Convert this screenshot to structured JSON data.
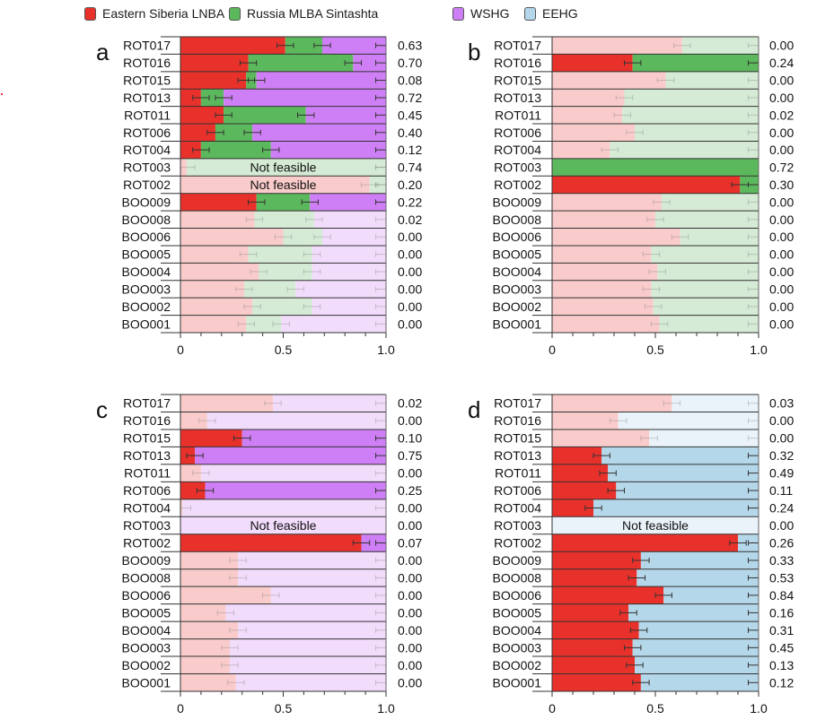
{
  "chart_data": {
    "type": "bar",
    "subtype": "stacked-horizontal-bar (admixture proportions, qpAdm-style)",
    "legend": [
      {
        "label": "Eastern Siberia LNBA",
        "color": "#e8312a"
      },
      {
        "label": "Russia MLBA Sintashta",
        "color": "#5cb85c"
      },
      {
        "label": "WSHG",
        "color": "#cf7ff5"
      },
      {
        "label": "EEHG",
        "color": "#b4d7ea"
      }
    ],
    "faded_colors": {
      "Eastern Siberia LNBA": "#f9cccb",
      "Russia MLBA Sintashta": "#d5ebd5",
      "WSHG": "#f2dcfb",
      "EEHG": "#eaf3fa"
    },
    "categories": [
      "ROT017",
      "ROT016",
      "ROT015",
      "ROT013",
      "ROT011",
      "ROT006",
      "ROT004",
      "ROT003",
      "ROT002",
      "BOO009",
      "BOO008",
      "BOO006",
      "BOO005",
      "BOO004",
      "BOO003",
      "BOO002",
      "BOO001"
    ],
    "xlim": [
      0,
      1.0
    ],
    "xticks": [
      "0",
      "0.5",
      "1.0"
    ],
    "minor_tick_step": 0.1,
    "not_feasible_label": "Not feasible",
    "panels": [
      {
        "letter": "a",
        "sources": [
          "Eastern Siberia LNBA",
          "Russia MLBA Sintashta",
          "WSHG"
        ],
        "rows": [
          {
            "id": "ROT017",
            "values": [
              0.51,
              0.18,
              0.31
            ],
            "p": "0.63",
            "feasible": true,
            "highlight": true
          },
          {
            "id": "ROT016",
            "values": [
              0.33,
              0.51,
              0.16
            ],
            "p": "0.70",
            "feasible": true,
            "highlight": true
          },
          {
            "id": "ROT015",
            "values": [
              0.32,
              0.05,
              0.63
            ],
            "p": "0.08",
            "feasible": true,
            "highlight": true
          },
          {
            "id": "ROT013",
            "values": [
              0.1,
              0.11,
              0.79
            ],
            "p": "0.72",
            "feasible": true,
            "highlight": true
          },
          {
            "id": "ROT011",
            "values": [
              0.21,
              0.4,
              0.39
            ],
            "p": "0.45",
            "feasible": true,
            "highlight": true
          },
          {
            "id": "ROT006",
            "values": [
              0.17,
              0.18,
              0.65
            ],
            "p": "0.40",
            "feasible": true,
            "highlight": true
          },
          {
            "id": "ROT004",
            "values": [
              0.1,
              0.34,
              0.56
            ],
            "p": "0.12",
            "feasible": true,
            "highlight": true
          },
          {
            "id": "ROT003",
            "values": [
              0.03,
              0.97,
              0.0
            ],
            "p": "0.74",
            "feasible": false,
            "highlight": false
          },
          {
            "id": "ROT002",
            "values": [
              0.92,
              0.08,
              0.0
            ],
            "p": "0.20",
            "feasible": false,
            "highlight": false
          },
          {
            "id": "BOO009",
            "values": [
              0.37,
              0.26,
              0.37
            ],
            "p": "0.22",
            "feasible": true,
            "highlight": true
          },
          {
            "id": "BOO008",
            "values": [
              0.36,
              0.29,
              0.35
            ],
            "p": "0.02",
            "feasible": true,
            "highlight": false
          },
          {
            "id": "BOO006",
            "values": [
              0.5,
              0.19,
              0.31
            ],
            "p": "0.00",
            "feasible": true,
            "highlight": false
          },
          {
            "id": "BOO005",
            "values": [
              0.33,
              0.31,
              0.36
            ],
            "p": "0.00",
            "feasible": true,
            "highlight": false
          },
          {
            "id": "BOO004",
            "values": [
              0.38,
              0.26,
              0.36
            ],
            "p": "0.00",
            "feasible": true,
            "highlight": false
          },
          {
            "id": "BOO003",
            "values": [
              0.31,
              0.25,
              0.44
            ],
            "p": "0.00",
            "feasible": true,
            "highlight": false
          },
          {
            "id": "BOO002",
            "values": [
              0.35,
              0.29,
              0.36
            ],
            "p": "0.00",
            "feasible": true,
            "highlight": false
          },
          {
            "id": "BOO001",
            "values": [
              0.32,
              0.17,
              0.51
            ],
            "p": "0.00",
            "feasible": true,
            "highlight": false
          }
        ]
      },
      {
        "letter": "b",
        "sources": [
          "Eastern Siberia LNBA",
          "Russia MLBA Sintashta"
        ],
        "rows": [
          {
            "id": "ROT017",
            "values": [
              0.63,
              0.37
            ],
            "p": "0.00",
            "feasible": true,
            "highlight": false
          },
          {
            "id": "ROT016",
            "values": [
              0.39,
              0.61
            ],
            "p": "0.24",
            "feasible": true,
            "highlight": true
          },
          {
            "id": "ROT015",
            "values": [
              0.55,
              0.45
            ],
            "p": "0.00",
            "feasible": true,
            "highlight": false
          },
          {
            "id": "ROT013",
            "values": [
              0.35,
              0.65
            ],
            "p": "0.00",
            "feasible": true,
            "highlight": false
          },
          {
            "id": "ROT011",
            "values": [
              0.34,
              0.66
            ],
            "p": "0.02",
            "feasible": true,
            "highlight": false
          },
          {
            "id": "ROT006",
            "values": [
              0.4,
              0.6
            ],
            "p": "0.00",
            "feasible": true,
            "highlight": false
          },
          {
            "id": "ROT004",
            "values": [
              0.28,
              0.72
            ],
            "p": "0.00",
            "feasible": true,
            "highlight": false
          },
          {
            "id": "ROT003",
            "values": [
              0.0,
              1.0
            ],
            "p": "0.72",
            "feasible": true,
            "highlight": true
          },
          {
            "id": "ROT002",
            "values": [
              0.91,
              0.09
            ],
            "p": "0.30",
            "feasible": true,
            "highlight": true
          },
          {
            "id": "BOO009",
            "values": [
              0.53,
              0.47
            ],
            "p": "0.00",
            "feasible": true,
            "highlight": false
          },
          {
            "id": "BOO008",
            "values": [
              0.5,
              0.5
            ],
            "p": "0.00",
            "feasible": true,
            "highlight": false
          },
          {
            "id": "BOO006",
            "values": [
              0.62,
              0.38
            ],
            "p": "0.00",
            "feasible": true,
            "highlight": false
          },
          {
            "id": "BOO005",
            "values": [
              0.48,
              0.52
            ],
            "p": "0.00",
            "feasible": true,
            "highlight": false
          },
          {
            "id": "BOO004",
            "values": [
              0.51,
              0.49
            ],
            "p": "0.00",
            "feasible": true,
            "highlight": false
          },
          {
            "id": "BOO003",
            "values": [
              0.48,
              0.52
            ],
            "p": "0.00",
            "feasible": true,
            "highlight": false
          },
          {
            "id": "BOO002",
            "values": [
              0.49,
              0.51
            ],
            "p": "0.00",
            "feasible": true,
            "highlight": false
          },
          {
            "id": "BOO001",
            "values": [
              0.52,
              0.48
            ],
            "p": "0.00",
            "feasible": true,
            "highlight": false
          }
        ]
      },
      {
        "letter": "c",
        "sources": [
          "Eastern Siberia LNBA",
          "WSHG"
        ],
        "rows": [
          {
            "id": "ROT017",
            "values": [
              0.45,
              0.55
            ],
            "p": "0.02",
            "feasible": true,
            "highlight": false
          },
          {
            "id": "ROT016",
            "values": [
              0.13,
              0.87
            ],
            "p": "0.00",
            "feasible": true,
            "highlight": false
          },
          {
            "id": "ROT015",
            "values": [
              0.3,
              0.7
            ],
            "p": "0.10",
            "feasible": true,
            "highlight": true
          },
          {
            "id": "ROT013",
            "values": [
              0.07,
              0.93
            ],
            "p": "0.75",
            "feasible": true,
            "highlight": true
          },
          {
            "id": "ROT011",
            "values": [
              0.1,
              0.9
            ],
            "p": "0.00",
            "feasible": true,
            "highlight": false
          },
          {
            "id": "ROT006",
            "values": [
              0.12,
              0.88
            ],
            "p": "0.25",
            "feasible": true,
            "highlight": true
          },
          {
            "id": "ROT004",
            "values": [
              0.01,
              0.99
            ],
            "p": "0.00",
            "feasible": true,
            "highlight": false
          },
          {
            "id": "ROT003",
            "values": [
              0.0,
              1.0
            ],
            "p": "0.00",
            "feasible": false,
            "highlight": false
          },
          {
            "id": "ROT002",
            "values": [
              0.88,
              0.12
            ],
            "p": "0.07",
            "feasible": true,
            "highlight": true
          },
          {
            "id": "BOO009",
            "values": [
              0.28,
              0.72
            ],
            "p": "0.00",
            "feasible": true,
            "highlight": false
          },
          {
            "id": "BOO008",
            "values": [
              0.28,
              0.72
            ],
            "p": "0.00",
            "feasible": true,
            "highlight": false
          },
          {
            "id": "BOO006",
            "values": [
              0.44,
              0.56
            ],
            "p": "0.00",
            "feasible": true,
            "highlight": false
          },
          {
            "id": "BOO005",
            "values": [
              0.22,
              0.78
            ],
            "p": "0.00",
            "feasible": true,
            "highlight": false
          },
          {
            "id": "BOO004",
            "values": [
              0.28,
              0.72
            ],
            "p": "0.00",
            "feasible": true,
            "highlight": false
          },
          {
            "id": "BOO003",
            "values": [
              0.24,
              0.76
            ],
            "p": "0.00",
            "feasible": true,
            "highlight": false
          },
          {
            "id": "BOO002",
            "values": [
              0.24,
              0.76
            ],
            "p": "0.00",
            "feasible": true,
            "highlight": false
          },
          {
            "id": "BOO001",
            "values": [
              0.27,
              0.73
            ],
            "p": "0.00",
            "feasible": true,
            "highlight": false
          }
        ]
      },
      {
        "letter": "d",
        "sources": [
          "Eastern Siberia LNBA",
          "EEHG"
        ],
        "rows": [
          {
            "id": "ROT017",
            "values": [
              0.58,
              0.42
            ],
            "p": "0.03",
            "feasible": true,
            "highlight": false
          },
          {
            "id": "ROT016",
            "values": [
              0.32,
              0.68
            ],
            "p": "0.00",
            "feasible": true,
            "highlight": false
          },
          {
            "id": "ROT015",
            "values": [
              0.47,
              0.53
            ],
            "p": "0.00",
            "feasible": true,
            "highlight": false
          },
          {
            "id": "ROT013",
            "values": [
              0.24,
              0.76
            ],
            "p": "0.32",
            "feasible": true,
            "highlight": true
          },
          {
            "id": "ROT011",
            "values": [
              0.27,
              0.73
            ],
            "p": "0.49",
            "feasible": true,
            "highlight": true
          },
          {
            "id": "ROT006",
            "values": [
              0.31,
              0.69
            ],
            "p": "0.11",
            "feasible": true,
            "highlight": true
          },
          {
            "id": "ROT004",
            "values": [
              0.2,
              0.8
            ],
            "p": "0.24",
            "feasible": true,
            "highlight": true
          },
          {
            "id": "ROT003",
            "values": [
              0.0,
              1.0
            ],
            "p": "0.00",
            "feasible": false,
            "highlight": false
          },
          {
            "id": "ROT002",
            "values": [
              0.9,
              0.1
            ],
            "p": "0.26",
            "feasible": true,
            "highlight": true
          },
          {
            "id": "BOO009",
            "values": [
              0.43,
              0.57
            ],
            "p": "0.33",
            "feasible": true,
            "highlight": true
          },
          {
            "id": "BOO008",
            "values": [
              0.41,
              0.59
            ],
            "p": "0.53",
            "feasible": true,
            "highlight": true
          },
          {
            "id": "BOO006",
            "values": [
              0.54,
              0.46
            ],
            "p": "0.84",
            "feasible": true,
            "highlight": true
          },
          {
            "id": "BOO005",
            "values": [
              0.37,
              0.63
            ],
            "p": "0.16",
            "feasible": true,
            "highlight": true
          },
          {
            "id": "BOO004",
            "values": [
              0.42,
              0.58
            ],
            "p": "0.31",
            "feasible": true,
            "highlight": true
          },
          {
            "id": "BOO003",
            "values": [
              0.39,
              0.61
            ],
            "p": "0.45",
            "feasible": true,
            "highlight": true
          },
          {
            "id": "BOO002",
            "values": [
              0.4,
              0.6
            ],
            "p": "0.13",
            "feasible": true,
            "highlight": true
          },
          {
            "id": "BOO001",
            "values": [
              0.43,
              0.57
            ],
            "p": "0.12",
            "feasible": true,
            "highlight": true
          }
        ]
      }
    ]
  }
}
